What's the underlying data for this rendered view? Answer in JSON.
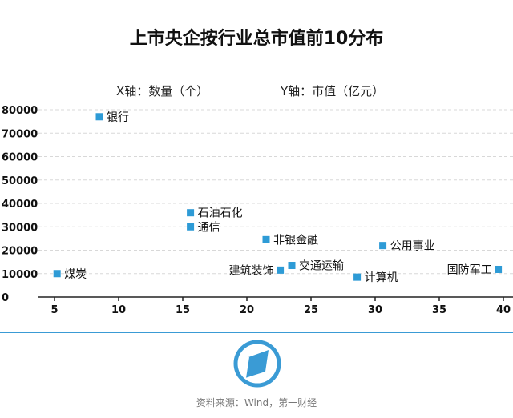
{
  "chart_data": {
    "type": "scatter",
    "title": "上市央企按行业总市值前10分布",
    "xlabel": "X轴：数量（个）",
    "ylabel": "Y轴：市值（亿元）",
    "xlim": [
      4,
      40
    ],
    "ylim": [
      0,
      80000
    ],
    "x_ticks": [
      5,
      10,
      15,
      20,
      25,
      30,
      35,
      40
    ],
    "y_ticks": [
      0,
      10000,
      20000,
      30000,
      40000,
      50000,
      60000,
      70000,
      80000
    ],
    "grid": true,
    "marker_color": "#2e9bd6",
    "points": [
      {
        "label": "银行",
        "x": 8.5,
        "y": 77000,
        "label_side": "right"
      },
      {
        "label": "石油石化",
        "x": 15.6,
        "y": 36000,
        "label_side": "right"
      },
      {
        "label": "通信",
        "x": 15.6,
        "y": 30000,
        "label_side": "right"
      },
      {
        "label": "非银金融",
        "x": 21.5,
        "y": 24500,
        "label_side": "right"
      },
      {
        "label": "公用事业",
        "x": 30.6,
        "y": 22000,
        "label_side": "right"
      },
      {
        "label": "交通运输",
        "x": 23.5,
        "y": 13500,
        "label_side": "right"
      },
      {
        "label": "建筑装饰",
        "x": 22.6,
        "y": 11500,
        "label_side": "left"
      },
      {
        "label": "国防军工",
        "x": 39.6,
        "y": 11800,
        "label_side": "left"
      },
      {
        "label": "计算机",
        "x": 28.6,
        "y": 8500,
        "label_side": "right"
      },
      {
        "label": "煤炭",
        "x": 5.2,
        "y": 10000,
        "label_side": "right"
      }
    ]
  },
  "footer": {
    "source": "资料来源：Wind，第一财经"
  }
}
